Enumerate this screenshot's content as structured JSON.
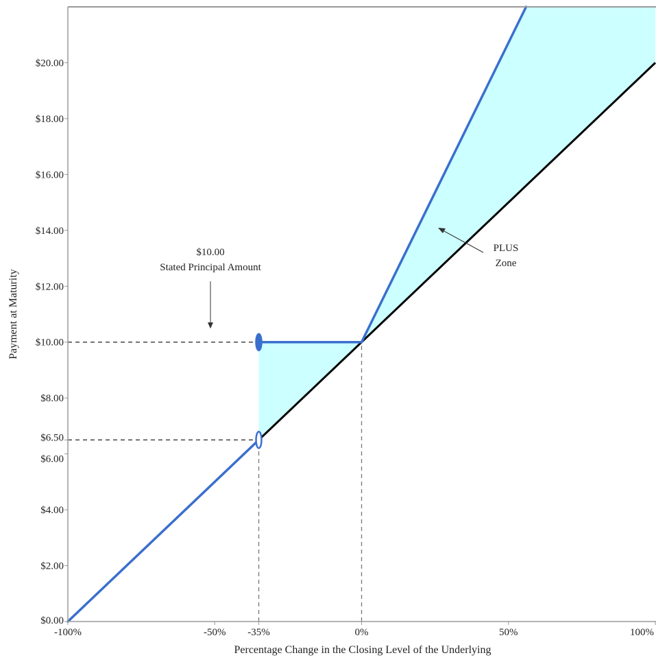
{
  "chart_data": {
    "type": "line",
    "title": "",
    "xlabel": "Percentage Change in the Closing Level of the Underlying",
    "ylabel": "Payment at Maturity",
    "xlim": [
      -100,
      100
    ],
    "ylim": [
      0,
      22
    ],
    "x_ticks": [
      {
        "value": -100,
        "label": "-100%"
      },
      {
        "value": -50,
        "label": "-50%"
      },
      {
        "value": -35,
        "label": "-35%"
      },
      {
        "value": 0,
        "label": "0%"
      },
      {
        "value": 50,
        "label": "50%"
      },
      {
        "value": 100,
        "label": "100%"
      }
    ],
    "y_ticks": [
      {
        "value": 0,
        "label": "$0.00"
      },
      {
        "value": 2,
        "label": "$2.00"
      },
      {
        "value": 4,
        "label": "$4.00"
      },
      {
        "value": 6,
        "label": "$6.00"
      },
      {
        "value": 6.5,
        "label": "$6.50"
      },
      {
        "value": 8,
        "label": "$8.00"
      },
      {
        "value": 10,
        "label": "$10.00"
      },
      {
        "value": 12,
        "label": "$12.00"
      },
      {
        "value": 14,
        "label": "$14.00"
      },
      {
        "value": 16,
        "label": "$16.00"
      },
      {
        "value": 18,
        "label": "$18.00"
      },
      {
        "value": 20,
        "label": "$20.00"
      }
    ],
    "series": [
      {
        "role": "underlying",
        "color": "#000000",
        "points": [
          [
            -100,
            0
          ],
          [
            100,
            20
          ]
        ]
      },
      {
        "role": "security-payoff",
        "color": "#3a6fce",
        "segments": [
          [
            [
              -100,
              0
            ],
            [
              -35,
              6.5
            ]
          ],
          [
            [
              -35,
              10
            ],
            [
              0,
              10
            ]
          ],
          [
            [
              0,
              10
            ],
            [
              56,
              22
            ]
          ]
        ]
      }
    ],
    "markers": [
      {
        "x": -35,
        "y": 10,
        "style": "filled"
      },
      {
        "x": -35,
        "y": 6.5,
        "style": "open"
      }
    ],
    "shaded_regions": [
      {
        "color": "#ccffff",
        "points": [
          [
            -35,
            6.5
          ],
          [
            -35,
            10
          ],
          [
            0,
            10
          ]
        ]
      },
      {
        "color": "#ccffff",
        "points": [
          [
            0,
            10
          ],
          [
            56,
            22
          ],
          [
            100,
            22
          ],
          [
            100,
            20
          ]
        ]
      }
    ],
    "reference_lines": [
      {
        "from": [
          -100,
          10
        ],
        "to": [
          -35,
          10
        ]
      },
      {
        "from": [
          -100,
          6.5
        ],
        "to": [
          -35,
          6.5
        ]
      },
      {
        "from": [
          -35,
          0
        ],
        "to": [
          -35,
          6.5
        ]
      },
      {
        "from": [
          0,
          0
        ],
        "to": [
          0,
          10
        ]
      }
    ],
    "annotations": {
      "principal_value": "$10.00",
      "principal_label": "Stated Principal Amount",
      "plus_zone_line1": "PLUS",
      "plus_zone_line2": "Zone"
    },
    "grid": false,
    "legend": "none"
  }
}
